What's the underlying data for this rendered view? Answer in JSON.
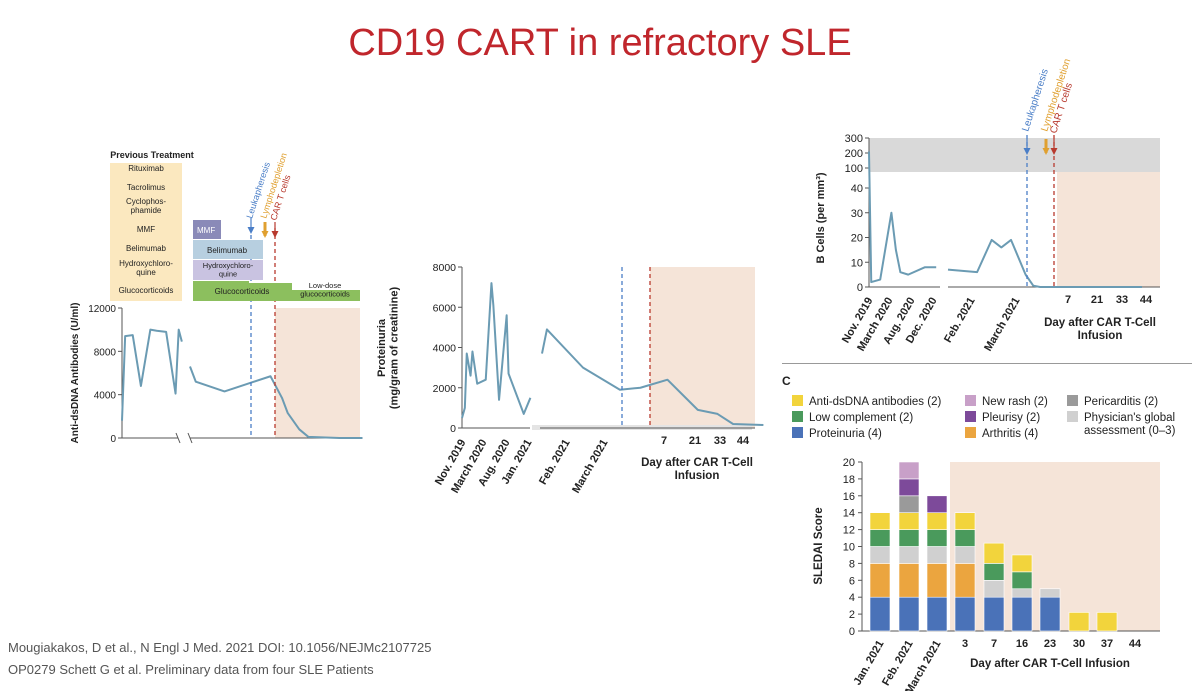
{
  "slide": {
    "title": "CD19 CART in refractory SLE",
    "citation_1": "Mougiakakos, D et al., N Engl J Med. 2021 DOI: 10.1056/NEJMc2107725",
    "citation_2": "OP0279 Schett G et al. Preliminary data from four SLE Patients"
  },
  "colors": {
    "title": "#c0262c",
    "line": "#6b9bb3",
    "post_infusion_shade": "#f5e4d8",
    "leukapheresis": "#4a7ec7",
    "lymphodepletion": "#e0a030",
    "cart": "#b83a2e",
    "treatment_pale": "#fbe8bf",
    "mmf_box": "#8a8ab8",
    "belimumab_box": "#b7cfe0",
    "hydroxychloroquine_box": "#c9c3e1",
    "glucocorticoids_box": "#8cbf5e",
    "bcell_gray": "#d9d9d9"
  },
  "chart_data": [
    {
      "type": "line",
      "id": "anti-dsdna",
      "title": "",
      "ylabel": "Anti-dsDNA Antibodies (U/ml)",
      "ylim": [
        0,
        12000
      ],
      "yticks": [
        "0",
        "4000",
        "8000",
        "12000"
      ],
      "annotations": [
        "Leukapheresis",
        "Lymphodepletion",
        "CAR T cells"
      ],
      "series": [
        {
          "points_before_break": [
            [
              0,
              1600
            ],
            [
              0.5,
              9400
            ],
            [
              1.7,
              9500
            ],
            [
              3,
              4800
            ],
            [
              4.5,
              10000
            ],
            [
              5.5,
              9900
            ],
            [
              7,
              9800
            ],
            [
              8.5,
              4100
            ],
            [
              9,
              10000
            ],
            [
              9.5,
              8900
            ]
          ],
          "points_after_break": [
            [
              0,
              6600
            ],
            [
              0.5,
              5200
            ],
            [
              3,
              4300
            ],
            [
              7,
              5700
            ],
            [
              8,
              3700
            ],
            [
              8.5,
              2300
            ],
            [
              9.5,
              800
            ],
            [
              10.3,
              100
            ],
            [
              13,
              0
            ],
            [
              15,
              0
            ]
          ]
        }
      ],
      "previous_treatment": {
        "heading": "Previous Treatment",
        "items": [
          "Rituximab",
          "Tacrolimus",
          "Cyclophos-\nphamide",
          "MMF",
          "Belimumab",
          "Hydroxychloro-\nquine",
          "Glucocorticoids"
        ],
        "current": [
          {
            "label": "MMF"
          },
          {
            "label": "Belimumab"
          },
          {
            "label": "Hydroxychloro-\nquine"
          },
          {
            "label": "Glucocorticoids"
          },
          {
            "label": "Low-dose\nglucocorticoids"
          }
        ]
      }
    },
    {
      "type": "line",
      "id": "proteinuria",
      "ylabel": "Proteinuria\n(mg/gram of creatinine)",
      "ylim": [
        0,
        8000
      ],
      "yticks": [
        "0",
        "2000",
        "4000",
        "6000",
        "8000"
      ],
      "x_date_labels": [
        "Nov. 2019",
        "March 2020",
        "Aug. 2020",
        "Jan. 2021",
        "Feb. 2021",
        "March 2021"
      ],
      "x_day_ticks": [
        "7",
        "21",
        "33",
        "44"
      ],
      "xlabel": "Day after CAR T-Cell\nInfusion",
      "series": [
        {
          "points_before_break": [
            [
              0,
              500
            ],
            [
              0.3,
              1000
            ],
            [
              0.5,
              3700
            ],
            [
              0.9,
              2600
            ],
            [
              1.1,
              3800
            ],
            [
              1.6,
              2200
            ],
            [
              2.5,
              2400
            ],
            [
              3.1,
              7200
            ],
            [
              3.3,
              6100
            ],
            [
              3.9,
              1400
            ],
            [
              4.7,
              5600
            ],
            [
              4.9,
              2700
            ],
            [
              6.5,
              700
            ],
            [
              7.2,
              1500
            ]
          ],
          "points_after_break": [
            [
              0,
              3700
            ],
            [
              0.6,
              4900
            ],
            [
              5,
              3000
            ],
            [
              9.5,
              1900
            ],
            [
              12,
              2000
            ],
            [
              15.3,
              2400
            ],
            [
              19,
              900
            ],
            [
              21.4,
              700
            ],
            [
              23.3,
              200
            ],
            [
              27,
              150
            ]
          ]
        }
      ]
    },
    {
      "type": "line",
      "id": "b-cells",
      "ylabel": "B Cells (per mm³)",
      "ylim": [
        0,
        300
      ],
      "yticks": [
        "0",
        "10",
        "20",
        "30",
        "40",
        "100",
        "200",
        "300"
      ],
      "x_date_labels": [
        "Nov. 2019",
        "March 2020",
        "Aug. 2020",
        "Dec. 2020",
        "Feb. 2021",
        "March 2021"
      ],
      "x_day_ticks": [
        "7",
        "21",
        "33",
        "44"
      ],
      "xlabel": "Day after CAR T-Cell\nInfusion",
      "annotations": [
        "Leukapheresis",
        "Lymphodepletion",
        "CAR T cells"
      ],
      "series": [
        {
          "points_before_break": [
            [
              0,
              210
            ],
            [
              0.2,
              2
            ],
            [
              1,
              3
            ],
            [
              2,
              30
            ],
            [
              2.4,
              15
            ],
            [
              2.8,
              6
            ],
            [
              3.5,
              5
            ],
            [
              5,
              8
            ],
            [
              6,
              8
            ]
          ],
          "points_after_break": [
            [
              0,
              7
            ],
            [
              3,
              6
            ],
            [
              4.5,
              19
            ],
            [
              5.5,
              16
            ],
            [
              6.5,
              19
            ],
            [
              8,
              5
            ],
            [
              8.8,
              0.5
            ],
            [
              9.5,
              0
            ],
            [
              12,
              0
            ],
            [
              20,
              0
            ]
          ]
        }
      ]
    },
    {
      "type": "bar",
      "id": "sledai",
      "ylabel": "SLEDAI Score",
      "ylim": [
        0,
        20
      ],
      "yticks": [
        "0",
        "2",
        "4",
        "6",
        "8",
        "10",
        "12",
        "14",
        "16",
        "18",
        "20"
      ],
      "categories": [
        "Jan. 2021",
        "Feb. 2021",
        "March 2021",
        "3",
        "7",
        "16",
        "23",
        "30",
        "37",
        "44"
      ],
      "xlabel": "Day after CAR T-Cell Infusion",
      "legend_position": "top",
      "series": [
        {
          "name": "Proteinuria (4)",
          "color": "#4a72b8",
          "values": [
            4,
            4,
            4,
            4,
            4,
            4,
            4,
            0,
            0,
            0
          ]
        },
        {
          "name": "Arthritis (4)",
          "color": "#eba53f",
          "values": [
            4,
            4,
            4,
            4,
            0,
            0,
            0,
            0,
            0,
            0
          ]
        },
        {
          "name": "Physician's global\nassessment (0–3)",
          "color": "#d0d0d0",
          "values": [
            2,
            2,
            2,
            2,
            2,
            1,
            1,
            0,
            0,
            0
          ]
        },
        {
          "name": "Low complement (2)",
          "color": "#4a9a5c",
          "values": [
            2,
            2,
            2,
            2,
            2,
            2,
            0,
            0,
            0,
            0
          ]
        },
        {
          "name": "Anti-dsDNA antibodies (2)",
          "color": "#f2d43c",
          "values": [
            2,
            2,
            2,
            2,
            2.4,
            2,
            0,
            2.2,
            2.2,
            0
          ]
        },
        {
          "name": "Pericarditis (2)",
          "color": "#9a9a9a",
          "values": [
            0,
            2,
            0,
            0,
            0,
            0,
            0,
            0,
            0,
            0
          ]
        },
        {
          "name": "Pleurisy (2)",
          "color": "#7d4a9a",
          "values": [
            0,
            2,
            2,
            0,
            0,
            0,
            0,
            0,
            0,
            0
          ]
        },
        {
          "name": "New rash (2)",
          "color": "#c8a0c8",
          "values": [
            0,
            2,
            0,
            0,
            0,
            0,
            0,
            0,
            0,
            0
          ]
        }
      ],
      "legend_order": [
        "Anti-dsDNA antibodies (2)",
        "New rash (2)",
        "Pericarditis (2)",
        "Low complement (2)",
        "Pleurisy (2)",
        "Physician's global\nassessment (0–3)",
        "Proteinuria (4)",
        "Arthritis (4)"
      ],
      "panel_letter": "C"
    }
  ]
}
